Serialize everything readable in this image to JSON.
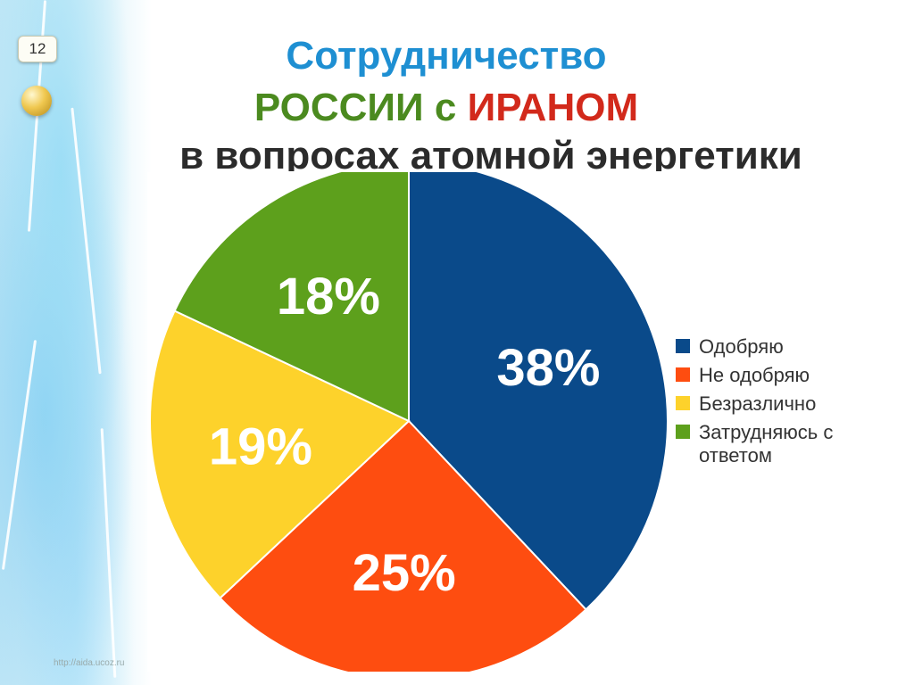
{
  "slide": {
    "number": "12",
    "source_url": "http://aida.ucoz.ru"
  },
  "title": {
    "line1": "Сотрудничество",
    "line2_part1": "РОССИИ",
    "line2_part2": " с ",
    "line2_part3": "ИРАНОМ",
    "line3": "в вопросах атомной энергетики"
  },
  "colors": {
    "title_blue": "#1e8fd2",
    "title_green": "#4b8a1f",
    "title_red": "#d2291b"
  },
  "chart_data": {
    "type": "pie",
    "title": "",
    "start_angle_deg": 0,
    "direction": "clockwise",
    "slices": [
      {
        "label": "Одобряю",
        "value": 38,
        "display": "38%",
        "color": "#0a4a8a"
      },
      {
        "label": "Не одобряю",
        "value": 25,
        "display": "25%",
        "color": "#fe4d10"
      },
      {
        "label": "Безразлично",
        "value": 19,
        "display": "19%",
        "color": "#fdd22b"
      },
      {
        "label": "Затрудняюсь с ответом",
        "value": 18,
        "display": "18%",
        "color": "#5da01c"
      }
    ],
    "legend_position": "right"
  }
}
